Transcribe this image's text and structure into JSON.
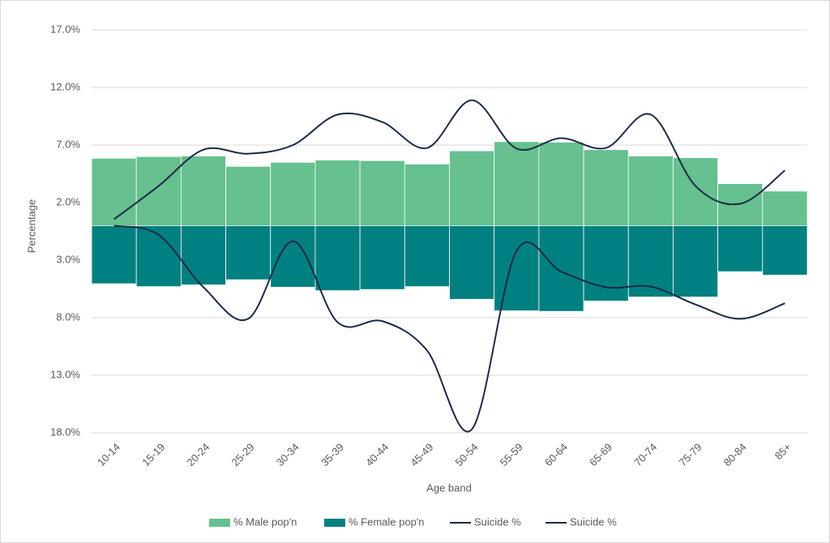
{
  "chart_data": {
    "type": "bar",
    "x_label": "Age band",
    "y_label": "Percentage",
    "categories": [
      "10-14",
      "15-19",
      "20-24",
      "25-29",
      "30-34",
      "35-39",
      "40-44",
      "45-49",
      "50-54",
      "55-59",
      "60-64",
      "65-69",
      "70-74",
      "75-79",
      "80-84",
      "85+"
    ],
    "series": [
      {
        "name": "% Male pop'n",
        "type": "bar",
        "color": "#66c08f",
        "values": [
          5.85,
          6.0,
          6.05,
          5.15,
          5.5,
          5.7,
          5.65,
          5.35,
          6.5,
          7.3,
          7.25,
          6.6,
          6.05,
          5.9,
          3.65,
          3.0
        ]
      },
      {
        "name": "% Female pop'n",
        "type": "bar",
        "color": "#008080",
        "values": [
          -5.05,
          -5.3,
          -5.15,
          -4.7,
          -5.35,
          -5.65,
          -5.55,
          -5.3,
          -6.4,
          -7.4,
          -7.45,
          -6.55,
          -6.2,
          -6.2,
          -4.0,
          -4.3
        ]
      },
      {
        "name": "Suicide %",
        "type": "line",
        "color": "#1b2a47",
        "values": [
          0.55,
          3.45,
          6.6,
          6.25,
          7.0,
          9.65,
          9.0,
          6.75,
          10.9,
          6.7,
          7.6,
          6.75,
          9.65,
          3.45,
          1.9,
          4.8
        ]
      },
      {
        "name": "Suicide %",
        "type": "line",
        "color": "#1b2a47",
        "values": [
          0,
          -0.8,
          -5.35,
          -8.1,
          -1.35,
          -8.4,
          -8.3,
          -10.85,
          -17.7,
          -2.2,
          -4.0,
          -5.35,
          -5.3,
          -6.85,
          -8.1,
          -6.75
        ]
      }
    ],
    "ylim": [
      -18,
      17
    ],
    "yticks": [
      {
        "value": 17,
        "label": "17.0%"
      },
      {
        "value": 12,
        "label": "12.0%"
      },
      {
        "value": 7,
        "label": "7.0%"
      },
      {
        "value": 2,
        "label": "2.0%"
      },
      {
        "value": -3,
        "label": "3.0%"
      },
      {
        "value": -8,
        "label": "8.0%"
      },
      {
        "value": -13,
        "label": "13.0%"
      },
      {
        "value": -18,
        "label": "18.0%"
      }
    ],
    "grid": true
  }
}
